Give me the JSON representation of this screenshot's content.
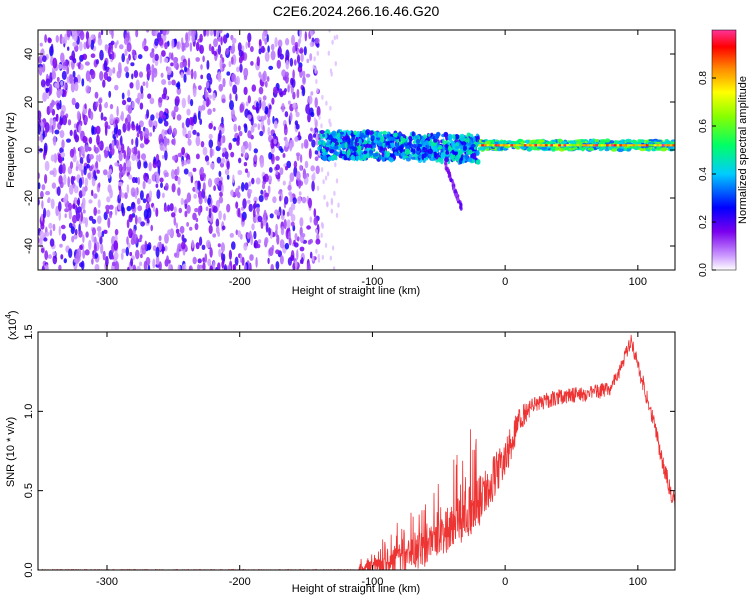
{
  "title": "C2E6.2024.266.16.46.G20",
  "chart_data": [
    {
      "type": "heatmap",
      "name": "spectrogram",
      "xlabel": "Height of straight line (km)",
      "ylabel": "Frequency (Hz)",
      "xlim": [
        -352,
        128
      ],
      "ylim": [
        -50,
        50
      ],
      "xticks": [
        -300,
        -200,
        -100,
        0,
        100
      ],
      "yticks": [
        -40,
        -20,
        0,
        20,
        40
      ],
      "colorbar": {
        "label": "Normalized spectral amplitude",
        "range": [
          0,
          1
        ],
        "ticks": [
          "0.0",
          "0.2",
          "0.4",
          "0.6",
          "0.8"
        ],
        "tick_values": [
          0,
          0.2,
          0.4,
          0.6,
          0.8
        ]
      },
      "regions": [
        {
          "name": "broadband-noise",
          "x_range": [
            -352,
            -140
          ],
          "f_range": [
            -50,
            50
          ],
          "amplitude": [
            0.05,
            0.25
          ]
        },
        {
          "name": "carrier-onset",
          "x_range": [
            -140,
            -20
          ],
          "f_range": [
            -6,
            8
          ],
          "amplitude": [
            0.2,
            0.5
          ]
        },
        {
          "name": "carrier-tail",
          "x_range": [
            -45,
            -33
          ],
          "f_range": [
            -24,
            -6
          ],
          "amplitude": [
            0.1,
            0.2
          ]
        },
        {
          "name": "carrier-stable",
          "x_range": [
            -20,
            128
          ],
          "f_range": [
            0,
            4
          ],
          "amplitude": [
            0.6,
            1.0
          ]
        }
      ]
    },
    {
      "type": "line",
      "name": "snr",
      "xlabel": "Height of straight line (km)",
      "ylabel": "SNR (10 * v/v)",
      "multiplier_label": "(x10",
      "multiplier_exponent": "4",
      "multiplier_close": ")",
      "xlim": [
        -352,
        128
      ],
      "ylim": [
        0,
        1.5
      ],
      "xticks": [
        -300,
        -200,
        -100,
        0,
        100
      ],
      "yticks": [
        "0.0",
        "0.5",
        "1.0",
        "1.5"
      ],
      "ytick_values": [
        0,
        0.5,
        1.0,
        1.5
      ],
      "color": "#ee3333",
      "key_points": {
        "x": [
          -352,
          -110,
          -100,
          -80,
          -60,
          -40,
          -20,
          -10,
          0,
          10,
          20,
          40,
          60,
          80,
          85,
          92,
          95,
          100,
          110,
          120,
          128
        ],
        "y": [
          0.0,
          0.0,
          0.03,
          0.08,
          0.16,
          0.3,
          0.45,
          0.6,
          0.72,
          0.95,
          1.05,
          1.1,
          1.12,
          1.15,
          1.25,
          1.4,
          1.45,
          1.3,
          1.0,
          0.65,
          0.42
        ]
      }
    }
  ]
}
